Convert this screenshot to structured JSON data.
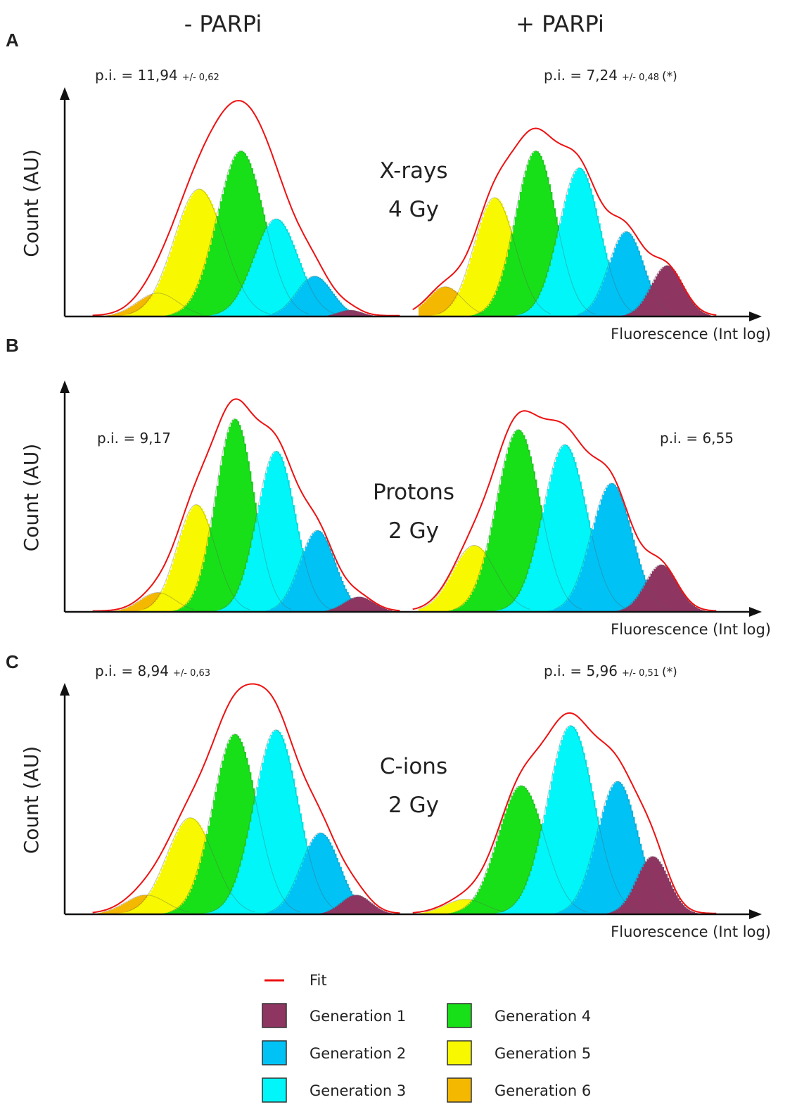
{
  "colors": {
    "fit": "#ee1111",
    "gen1": "#8e3562",
    "gen2": "#00c2f5",
    "gen3": "#00f6f8",
    "gen4": "#18e018",
    "gen5": "#f8f800",
    "gen6": "#f4b800"
  },
  "columns": [
    {
      "label": "- PARPi"
    },
    {
      "label": "+ PARPi"
    }
  ],
  "legend": {
    "fit_label": "Fit",
    "entries": [
      {
        "key": "gen1",
        "label": "Generation 1"
      },
      {
        "key": "gen2",
        "label": "Generation 2"
      },
      {
        "key": "gen3",
        "label": "Generation 3"
      },
      {
        "key": "gen4",
        "label": "Generation 4"
      },
      {
        "key": "gen5",
        "label": "Generation 5"
      },
      {
        "key": "gen6",
        "label": "Generation 6"
      }
    ]
  },
  "chart_data": [
    {
      "type": "area",
      "panel": "A",
      "condition": [
        "X-rays",
        "4 Gy"
      ],
      "xlabel": "Fluorescence (Int log)",
      "ylabel": "Count (AU)",
      "x_scale": "log",
      "y_units": "AU",
      "histograms": [
        {
          "treatment": "- PARPi",
          "pi": {
            "value": "p.i. = 11,94",
            "error": "+/- 0,62",
            "sig": ""
          },
          "pi_place": "top",
          "series": [
            {
              "key": "gen6",
              "center": 0.2,
              "amp": 0.11,
              "width": 0.07
            },
            {
              "key": "gen5",
              "center": 0.34,
              "amp": 0.6,
              "width": 0.085
            },
            {
              "key": "gen4",
              "center": 0.48,
              "amp": 0.78,
              "width": 0.08
            },
            {
              "key": "gen3",
              "center": 0.6,
              "amp": 0.46,
              "width": 0.075
            },
            {
              "key": "gen2",
              "center": 0.73,
              "amp": 0.19,
              "width": 0.06
            },
            {
              "key": "gen1",
              "center": 0.85,
              "amp": 0.03,
              "width": 0.04
            }
          ]
        },
        {
          "treatment": "+ PARPi",
          "pi": {
            "value": "p.i. = 7,24",
            "error": "+/- 0,48",
            "sig": "(*)"
          },
          "pi_place": "top",
          "series": [
            {
              "key": "gen6",
              "center": 0.09,
              "amp": 0.14,
              "width": 0.06
            },
            {
              "key": "gen5",
              "center": 0.26,
              "amp": 0.56,
              "width": 0.07
            },
            {
              "key": "gen4",
              "center": 0.4,
              "amp": 0.78,
              "width": 0.07
            },
            {
              "key": "gen3",
              "center": 0.55,
              "amp": 0.7,
              "width": 0.07
            },
            {
              "key": "gen2",
              "center": 0.71,
              "amp": 0.4,
              "width": 0.06
            },
            {
              "key": "gen1",
              "center": 0.85,
              "amp": 0.24,
              "width": 0.055
            }
          ]
        }
      ]
    },
    {
      "type": "area",
      "panel": "B",
      "condition": [
        "Protons",
        "2 Gy"
      ],
      "xlabel": "Fluorescence (Int log)",
      "ylabel": "Count (AU)",
      "x_scale": "log",
      "y_units": "AU",
      "histograms": [
        {
          "treatment": "- PARPi",
          "pi": {
            "value": "p.i. = 9,17",
            "error": "",
            "sig": ""
          },
          "pi_place": "side",
          "series": [
            {
              "key": "gen6",
              "center": 0.2,
              "amp": 0.09,
              "width": 0.06
            },
            {
              "key": "gen5",
              "center": 0.33,
              "amp": 0.5,
              "width": 0.065
            },
            {
              "key": "gen4",
              "center": 0.46,
              "amp": 0.9,
              "width": 0.065
            },
            {
              "key": "gen3",
              "center": 0.6,
              "amp": 0.75,
              "width": 0.065
            },
            {
              "key": "gen2",
              "center": 0.74,
              "amp": 0.38,
              "width": 0.06
            },
            {
              "key": "gen1",
              "center": 0.88,
              "amp": 0.07,
              "width": 0.05
            }
          ]
        },
        {
          "treatment": "+ PARPi",
          "pi": {
            "value": "p.i. = 6,55",
            "error": "",
            "sig": ""
          },
          "pi_place": "side",
          "series": [
            {
              "key": "gen5",
              "center": 0.19,
              "amp": 0.31,
              "width": 0.075
            },
            {
              "key": "gen4",
              "center": 0.34,
              "amp": 0.85,
              "width": 0.075
            },
            {
              "key": "gen3",
              "center": 0.5,
              "amp": 0.78,
              "width": 0.075
            },
            {
              "key": "gen2",
              "center": 0.66,
              "amp": 0.6,
              "width": 0.07
            },
            {
              "key": "gen1",
              "center": 0.83,
              "amp": 0.22,
              "width": 0.055
            }
          ]
        }
      ]
    },
    {
      "type": "area",
      "panel": "C",
      "condition": [
        "C-ions",
        "2 Gy"
      ],
      "xlabel": "Fluorescence (Int log)",
      "ylabel": "Count (AU)",
      "x_scale": "log",
      "y_units": "AU",
      "histograms": [
        {
          "treatment": "- PARPi",
          "pi": {
            "value": "p.i. = 8,94",
            "error": "+/- 0,63",
            "sig": ""
          },
          "pi_place": "top",
          "series": [
            {
              "key": "gen6",
              "center": 0.16,
              "amp": 0.09,
              "width": 0.07
            },
            {
              "key": "gen5",
              "center": 0.31,
              "amp": 0.45,
              "width": 0.08
            },
            {
              "key": "gen4",
              "center": 0.46,
              "amp": 0.84,
              "width": 0.075
            },
            {
              "key": "gen3",
              "center": 0.6,
              "amp": 0.86,
              "width": 0.075
            },
            {
              "key": "gen2",
              "center": 0.75,
              "amp": 0.38,
              "width": 0.065
            },
            {
              "key": "gen1",
              "center": 0.87,
              "amp": 0.09,
              "width": 0.05
            }
          ]
        },
        {
          "treatment": "+ PARPi",
          "pi": {
            "value": "p.i. = 5,96",
            "error": "+/- 0,51",
            "sig": "(*)"
          },
          "pi_place": "top",
          "series": [
            {
              "key": "gen5",
              "center": 0.16,
              "amp": 0.07,
              "width": 0.07
            },
            {
              "key": "gen4",
              "center": 0.35,
              "amp": 0.6,
              "width": 0.08
            },
            {
              "key": "gen3",
              "center": 0.52,
              "amp": 0.88,
              "width": 0.08
            },
            {
              "key": "gen2",
              "center": 0.68,
              "amp": 0.62,
              "width": 0.07
            },
            {
              "key": "gen1",
              "center": 0.8,
              "amp": 0.27,
              "width": 0.055
            }
          ]
        }
      ]
    }
  ]
}
